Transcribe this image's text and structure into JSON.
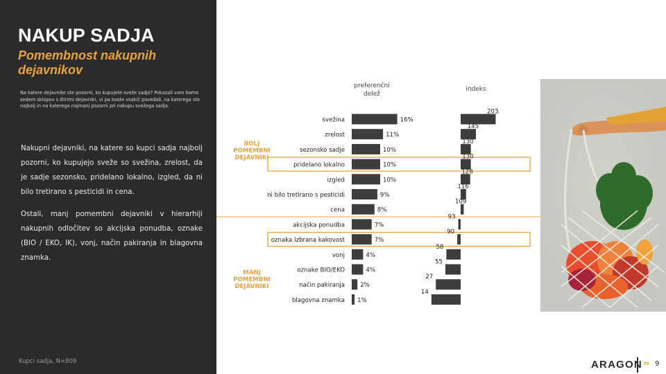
{
  "slide": {
    "title": "NAKUP SADJA",
    "subtitle": "Pomembnost nakupnih dejavnikov",
    "question": "Na katere dejavnike ste pozorni, ko kupujete sveže sadje? Pokazali vam bomo sedem sklopov s štirimi dejavniki, vi pa boste vsakič povedali, na katerega ste najbolj in na katerega najmanj pozorni pri nakupu svežega sadja.",
    "paragraph1": "Nakupni dejavniki, na katere so kupci sadja najbolj pozorni, ko kupujejo sveže so svežina, zrelost, da je sadje sezonsko, pridelano lokalno, izgled, da ni bilo tretirano s pesticidi in cena.",
    "paragraph2": "Ostali, manj pomembni dejavniki v hierarhiji nakupnih odločitev so akcijska ponudba, oznake (BIO / EKO, IK), vonj, način pakiranja in blagovna znamka.",
    "footnote": "Kupci sadja, N=809",
    "logo_text": "ARAGON",
    "logo_mark": "=",
    "page_number": "9"
  },
  "colors": {
    "dark_panel": "#2b2b2b",
    "accent": "#e8a33c",
    "bar": "#3d3d3d",
    "text_dark": "#222222"
  },
  "chart_data": {
    "type": "bar",
    "title": "",
    "header_share": "preferenčni delež",
    "header_index": "indeks",
    "group_labels": {
      "top": "BOLJ POMEMBNI DEJAVNIKI",
      "bottom": "MANJ POMEMBNI DEJAVNIKI"
    },
    "highlighted": [
      "pridelano lokalno",
      "oznaka Izbrana kakovost"
    ],
    "categories": [
      "svežina",
      "zrelost",
      "sezonsko sadje",
      "pridelano lokalno",
      "izgled",
      "ni bilo tretirano s pesticidi",
      "cena",
      "akcijska ponudba",
      "oznaka Izbrana kakovost",
      "vonj",
      "oznake BIO/EKO",
      "način pakiranja",
      "blagovna znamka"
    ],
    "series": [
      {
        "name": "preferenčni delež",
        "values": [
          16,
          11,
          10,
          10,
          10,
          9,
          8,
          7,
          7,
          4,
          4,
          2,
          1
        ],
        "labels": [
          "16%",
          "11%",
          "10%",
          "10%",
          "10%",
          "9%",
          "8%",
          "7%",
          "7%",
          "4%",
          "4%",
          "2%",
          "1%"
        ]
      },
      {
        "name": "indeks",
        "values": [
          203,
          145,
          130,
          130,
          128,
          116,
          109,
          93,
          90,
          58,
          55,
          27,
          14
        ],
        "labels": [
          "203",
          "145",
          "130",
          "130",
          "128",
          "116",
          "109",
          "93",
          "90",
          "58",
          "55",
          "27",
          "14"
        ]
      }
    ],
    "reference_index": 100
  }
}
